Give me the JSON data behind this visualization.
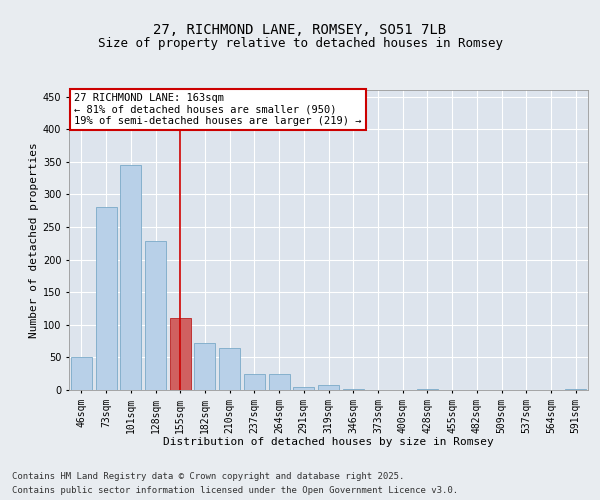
{
  "title_line1": "27, RICHMOND LANE, ROMSEY, SO51 7LB",
  "title_line2": "Size of property relative to detached houses in Romsey",
  "xlabel": "Distribution of detached houses by size in Romsey",
  "ylabel": "Number of detached properties",
  "categories": [
    "46sqm",
    "73sqm",
    "101sqm",
    "128sqm",
    "155sqm",
    "182sqm",
    "210sqm",
    "237sqm",
    "264sqm",
    "291sqm",
    "319sqm",
    "346sqm",
    "373sqm",
    "400sqm",
    "428sqm",
    "455sqm",
    "482sqm",
    "509sqm",
    "537sqm",
    "564sqm",
    "591sqm"
  ],
  "values": [
    50,
    280,
    345,
    228,
    110,
    72,
    65,
    25,
    25,
    5,
    7,
    2,
    0,
    0,
    2,
    0,
    0,
    0,
    0,
    0,
    2
  ],
  "bar_color": "#b8d0e8",
  "bar_edge_color": "#7aaac8",
  "highlight_bar_index": 4,
  "highlight_bar_color": "#d06060",
  "highlight_bar_edge_color": "#bb2222",
  "vline_x_index": 4,
  "vline_color": "#cc0000",
  "annotation_text": "27 RICHMOND LANE: 163sqm\n← 81% of detached houses are smaller (950)\n19% of semi-detached houses are larger (219) →",
  "annotation_box_color": "#ffffff",
  "annotation_box_edge_color": "#cc0000",
  "ylim": [
    0,
    460
  ],
  "yticks": [
    0,
    50,
    100,
    150,
    200,
    250,
    300,
    350,
    400,
    450
  ],
  "footnote1": "Contains HM Land Registry data © Crown copyright and database right 2025.",
  "footnote2": "Contains public sector information licensed under the Open Government Licence v3.0.",
  "bg_color": "#e8ecf0",
  "plot_bg_color": "#dde4ed",
  "grid_color": "#ffffff",
  "title_fontsize": 10,
  "subtitle_fontsize": 9,
  "axis_label_fontsize": 8,
  "tick_fontsize": 7,
  "annotation_fontsize": 7.5,
  "footnote_fontsize": 6.5
}
